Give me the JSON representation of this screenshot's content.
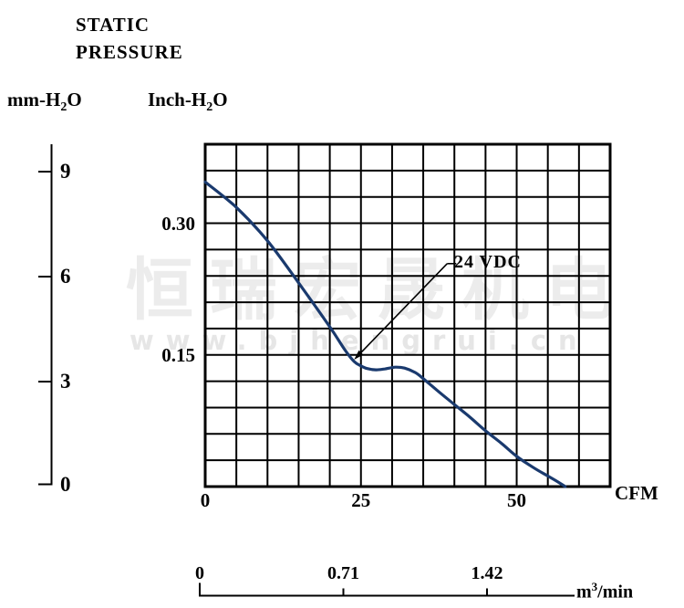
{
  "title": {
    "line1": "STATIC",
    "line2": "PRESSURE"
  },
  "axes": {
    "left_unit": {
      "prefix": "mm-H",
      "sub": "2",
      "suffix": "O"
    },
    "inner_unit": {
      "prefix": "Inch-H",
      "sub": "2",
      "suffix": "O"
    },
    "x_unit": "CFM",
    "bottom_unit": {
      "prefix": "m",
      "sup": "3",
      "suffix": "/min"
    },
    "mm_ticks": [
      {
        "label": "9",
        "value": 9
      },
      {
        "label": "6",
        "value": 6
      },
      {
        "label": "3",
        "value": 3
      },
      {
        "label": "0",
        "value": 0
      }
    ],
    "inch_ticks": [
      {
        "label": "0.30",
        "value": 0.3
      },
      {
        "label": "0.15",
        "value": 0.15
      }
    ],
    "cfm_ticks": [
      {
        "label": "0",
        "value": 0
      },
      {
        "label": "25",
        "value": 25
      },
      {
        "label": "50",
        "value": 50
      }
    ],
    "m3_ticks": [
      {
        "label": "0",
        "value": 0
      },
      {
        "label": "0.71",
        "value": 0.71
      },
      {
        "label": "1.42",
        "value": 1.42
      }
    ]
  },
  "chart_data": {
    "type": "line",
    "title": "STATIC PRESSURE",
    "xlabel": "CFM",
    "xlabel_secondary": "m3/min",
    "ylabel_left": "mm-H2O",
    "ylabel_inner": "Inch-H2O",
    "xlim_cfm": [
      0,
      65
    ],
    "ylim_inch": [
      0,
      0.39
    ],
    "ylim_mm": [
      0,
      9.9
    ],
    "bottom_axis_range_m3min": [
      0,
      1.42
    ],
    "grid": {
      "cols": 13,
      "rows": 13,
      "cfm_per_cell": 5,
      "inch_per_cell": 0.03,
      "grid_on": true
    },
    "series": [
      {
        "name": "24 VDC",
        "points_cfm_inch": [
          [
            0,
            0.347
          ],
          [
            5,
            0.318
          ],
          [
            10,
            0.28
          ],
          [
            15,
            0.232
          ],
          [
            20,
            0.182
          ],
          [
            22.4,
            0.156
          ],
          [
            23.9,
            0.1425
          ],
          [
            25,
            0.1375
          ],
          [
            26,
            0.1345
          ],
          [
            27.4,
            0.133
          ],
          [
            28.8,
            0.134
          ],
          [
            30.5,
            0.136
          ],
          [
            32,
            0.135
          ],
          [
            33.7,
            0.13
          ],
          [
            35,
            0.123
          ],
          [
            37.5,
            0.108
          ],
          [
            40,
            0.0935
          ],
          [
            42.5,
            0.079
          ],
          [
            45,
            0.0635
          ],
          [
            47.6,
            0.049
          ],
          [
            50,
            0.0345
          ],
          [
            52.6,
            0.022
          ],
          [
            54.9,
            0.0125
          ],
          [
            56.7,
            0.005
          ],
          [
            57.8,
            0
          ]
        ]
      }
    ],
    "annotation": {
      "label": "24 VDC",
      "target_cfm_inch": [
        23.9,
        0.1445
      ],
      "label_cfm_inch": [
        40.3,
        0.254
      ]
    }
  },
  "watermark": {
    "text_cn": "恒瑞宏晟机电",
    "text_url": "www.bjhengrui.cn"
  },
  "colors": {
    "curve": "#1a3a6e",
    "grid": "#000000",
    "text": "#000000",
    "watermark": "#ececec"
  }
}
